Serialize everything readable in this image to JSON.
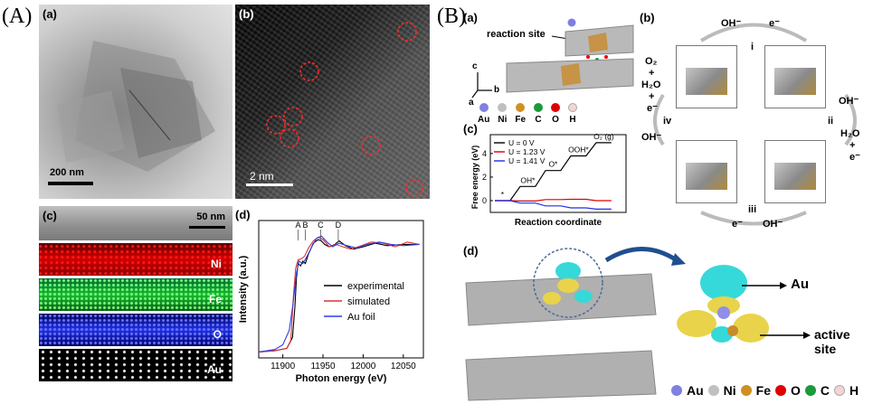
{
  "figure": {
    "labelA": "(A)",
    "labelB": "(B)"
  },
  "panelA": {
    "a": {
      "letter": "(a)",
      "scalebar": "200 nm"
    },
    "b": {
      "letter": "(b)",
      "scalebar": "2  nm"
    },
    "c": {
      "letter": "(c)",
      "scalebar": "50 nm",
      "maps": [
        "Ni",
        "Fe",
        "O",
        "Au"
      ],
      "colors": {
        "Ni": "#e00000",
        "Fe": "#19c83a",
        "O": "#1f2fe6",
        "Au": "#ffffff"
      }
    },
    "d": {
      "letter": "(d)"
    }
  },
  "panelB": {
    "a": {
      "letter": "(a)",
      "reaction_site": "reaction site",
      "axes": [
        "c",
        "b",
        "a"
      ],
      "atoms": [
        "Au",
        "Ni",
        "Fe",
        "C",
        "O",
        "H"
      ]
    },
    "b": {
      "letter": "(b)",
      "top": {
        "oh": "OH⁻",
        "e": "e⁻",
        "step": "i"
      },
      "right": {
        "oh": "OH⁻",
        "step": "ii",
        "h2o": "H₂O",
        "plus": "+",
        "e": "e⁻"
      },
      "bottom": {
        "e": "e⁻",
        "oh": "OH⁻",
        "step": "iii"
      },
      "left": {
        "o2": "O₂",
        "plus1": "+",
        "h2o": "H₂O",
        "plus2": "+",
        "e": "e⁻",
        "step": "iv",
        "oh": "OH⁻"
      }
    },
    "c": {
      "letter": "(c)"
    },
    "d": {
      "letter": "(d)",
      "au_label": "Au",
      "active_site": "active site",
      "atoms": [
        "Au",
        "Ni",
        "Fe",
        "O",
        "C",
        "H"
      ]
    }
  },
  "chart_data": [
    {
      "type": "line",
      "id": "xanes",
      "xlabel": "Photon energy (eV)",
      "ylabel": "Intensity (a.u.)",
      "xlim": [
        11870,
        12075
      ],
      "xticks": [
        11900,
        11950,
        12000,
        12050
      ],
      "annotations": [
        "A",
        "B",
        "C",
        "D"
      ],
      "annotation_x": [
        11919,
        11928,
        11947,
        11969
      ],
      "legend_position": "right",
      "series": [
        {
          "name": "experimental",
          "color": "#000000",
          "x": [
            11870,
            11890,
            11905,
            11912,
            11915,
            11917,
            11919,
            11922,
            11925,
            11928,
            11932,
            11938,
            11944,
            11948,
            11952,
            11958,
            11965,
            11970,
            11978,
            11988,
            12000,
            12015,
            12030,
            12050,
            12070
          ],
          "y": [
            0.0,
            0.01,
            0.03,
            0.12,
            0.38,
            0.62,
            0.74,
            0.72,
            0.76,
            0.74,
            0.82,
            0.91,
            0.94,
            0.93,
            0.9,
            0.88,
            0.9,
            0.93,
            0.89,
            0.86,
            0.88,
            0.91,
            0.89,
            0.9,
            0.9
          ]
        },
        {
          "name": "simulated",
          "color": "#e03030",
          "x": [
            11870,
            11890,
            11905,
            11910,
            11913,
            11916,
            11919,
            11923,
            11927,
            11932,
            11938,
            11944,
            11950,
            11958,
            11966,
            11975,
            11985,
            11998,
            12010,
            12025,
            12040,
            12055,
            12070
          ],
          "y": [
            0.0,
            0.01,
            0.03,
            0.1,
            0.45,
            0.7,
            0.77,
            0.78,
            0.8,
            0.87,
            0.93,
            0.96,
            0.94,
            0.88,
            0.9,
            0.88,
            0.86,
            0.89,
            0.92,
            0.91,
            0.88,
            0.92,
            0.9
          ]
        },
        {
          "name": "Au foil",
          "color": "#2a3ee8",
          "x": [
            11870,
            11890,
            11900,
            11908,
            11913,
            11917,
            11920,
            11925,
            11930,
            11936,
            11942,
            11948,
            11955,
            11962,
            11970,
            11980,
            11992,
            12005,
            12020,
            12035,
            12050,
            12070
          ],
          "y": [
            0.0,
            0.02,
            0.06,
            0.18,
            0.42,
            0.66,
            0.76,
            0.74,
            0.8,
            0.88,
            0.95,
            0.97,
            0.92,
            0.88,
            0.91,
            0.89,
            0.87,
            0.9,
            0.92,
            0.9,
            0.89,
            0.9
          ]
        }
      ]
    },
    {
      "type": "line",
      "id": "free_energy",
      "xlabel": "Reaction coordinate",
      "ylabel": "Free energy (eV)",
      "yticks": [
        0,
        2,
        4
      ],
      "ylim": [
        -1,
        5.6
      ],
      "intermediates": [
        "*",
        "OH*",
        "O*",
        "OOH*",
        "O₂ (g)"
      ],
      "legend_position": "top-left",
      "series": [
        {
          "name": "U = 0 V",
          "color": "#000000",
          "y": [
            0,
            1.2,
            2.55,
            3.8,
            4.92
          ]
        },
        {
          "name": "U = 1.23 V",
          "color": "#e00000",
          "y": [
            0,
            -0.03,
            0.09,
            0.11,
            0.0
          ]
        },
        {
          "name": "U = 1.41 V",
          "color": "#1f2fe6",
          "y": [
            0,
            -0.21,
            -0.45,
            -0.62,
            -0.72
          ]
        }
      ]
    }
  ]
}
